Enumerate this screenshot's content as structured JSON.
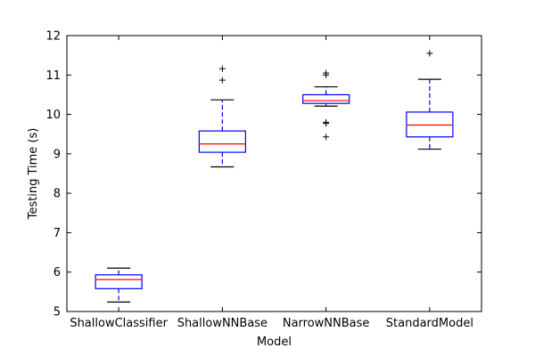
{
  "chart_data": {
    "type": "box",
    "title": "",
    "xlabel": "Model",
    "ylabel": "Testing Time (s)",
    "ylim": [
      5,
      12
    ],
    "yticks": [
      5,
      6,
      7,
      8,
      9,
      10,
      11,
      12
    ],
    "categories": [
      "ShallowClassifier",
      "ShallowNNBase",
      "NarrowNNBase",
      "StandardModel"
    ],
    "boxes": [
      {
        "whisker_low": 5.24,
        "q1": 5.58,
        "median": 5.81,
        "q3": 5.93,
        "whisker_high": 6.1,
        "fliers": []
      },
      {
        "whisker_low": 8.67,
        "q1": 9.04,
        "median": 9.25,
        "q3": 9.58,
        "whisker_high": 10.37,
        "fliers": [
          10.87,
          11.16
        ]
      },
      {
        "whisker_low": 10.21,
        "q1": 10.28,
        "median": 10.35,
        "q3": 10.5,
        "whisker_high": 10.7,
        "fliers": [
          9.43,
          9.77,
          9.8,
          11.0,
          11.05
        ]
      },
      {
        "whisker_low": 9.12,
        "q1": 9.43,
        "median": 9.73,
        "q3": 10.06,
        "whisker_high": 10.89,
        "fliers": [
          11.55
        ]
      }
    ],
    "colors": {
      "box": "#0000ff",
      "median": "#ff0000",
      "whisker": "#0000ff",
      "cap": "#000000",
      "flier": "#000000"
    },
    "grid": false,
    "legend": "none"
  }
}
